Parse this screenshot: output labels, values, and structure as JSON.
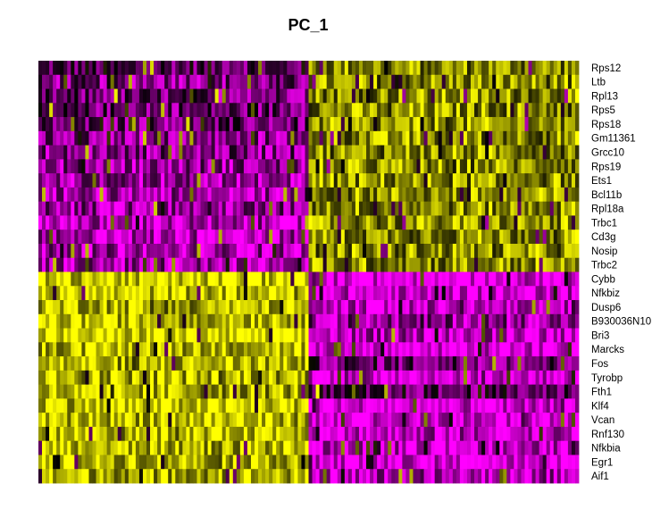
{
  "chart_data": {
    "type": "heatmap",
    "title": "PC_1",
    "rows": [
      "Rps12",
      "Ltb",
      "Rpl13",
      "Rps5",
      "Rps18",
      "Gm11361",
      "Grcc10",
      "Rps19",
      "Ets1",
      "Bcl11b",
      "Rpl18a",
      "Trbc1",
      "Cd3g",
      "Nosip",
      "Trbc2",
      "Cybb",
      "Nfkbiz",
      "Dusp6",
      "B930036N10",
      "Bri3",
      "Marcks",
      "Fos",
      "Tyrobp",
      "Fth1",
      "Klf4",
      "Vcan",
      "Rnf130",
      "Nfkbia",
      "Egr1",
      "Aif1"
    ],
    "column_groups": [
      {
        "cells": "left",
        "fraction": 0.5
      },
      {
        "cells": "right",
        "fraction": 0.5
      }
    ],
    "row_group_means": [
      [
        0.35,
        0.78
      ],
      [
        0.25,
        0.78
      ],
      [
        0.28,
        0.78
      ],
      [
        0.3,
        0.78
      ],
      [
        0.28,
        0.78
      ],
      [
        0.22,
        0.78
      ],
      [
        0.24,
        0.78
      ],
      [
        0.22,
        0.78
      ],
      [
        0.18,
        0.78
      ],
      [
        0.16,
        0.78
      ],
      [
        0.22,
        0.78
      ],
      [
        0.14,
        0.78
      ],
      [
        0.15,
        0.78
      ],
      [
        0.17,
        0.78
      ],
      [
        0.18,
        0.78
      ],
      [
        0.92,
        0.05
      ],
      [
        0.9,
        0.08
      ],
      [
        0.88,
        0.1
      ],
      [
        0.9,
        0.22
      ],
      [
        0.92,
        0.14
      ],
      [
        0.88,
        0.06
      ],
      [
        0.86,
        0.3
      ],
      [
        0.86,
        0.12
      ],
      [
        0.84,
        0.32
      ],
      [
        0.9,
        0.05
      ],
      [
        0.88,
        0.06
      ],
      [
        0.92,
        0.12
      ],
      [
        0.86,
        0.1
      ],
      [
        0.88,
        0.05
      ],
      [
        0.86,
        0.15
      ]
    ],
    "colorscale": [
      "#ff00ff",
      "#000000",
      "#ffff00"
    ]
  }
}
